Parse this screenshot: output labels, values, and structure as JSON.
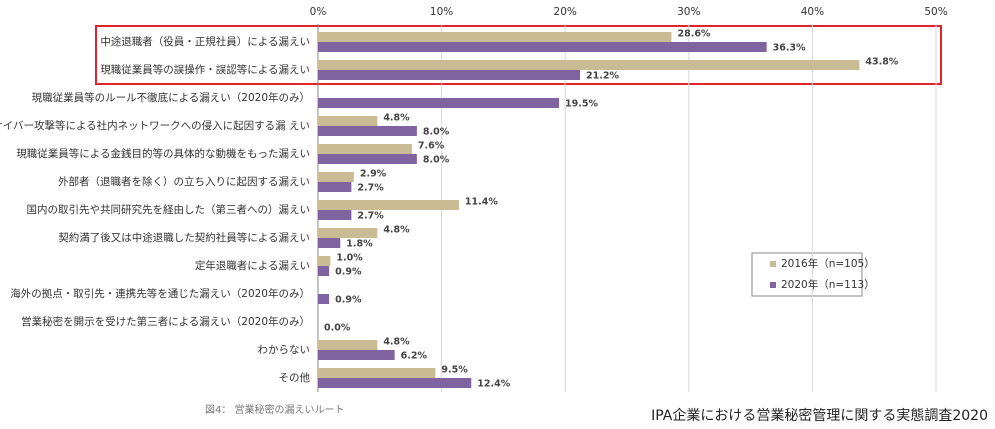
{
  "chart_data": {
    "type": "bar",
    "orientation": "horizontal",
    "categories": [
      "中途退職者（役員・正規社員）による漏えい",
      "現職従業員等の誤操作・誤認等による漏えい",
      "現職従業員等のルール不徹底による漏えい（2020年のみ）",
      "サイバー攻撃等による社内ネットワークへの侵入に起因する漏 えい",
      "現職従業員等による金銭目的等の具体的な動機をもった漏えい",
      "外部者（退職者を除く）の立ち入りに起因する漏えい",
      "国内の取引先や共同研究先を経由した（第三者への）漏えい",
      "契約満了後又は中途退職した契約社員等による漏えい",
      "定年退職者による漏えい",
      "海外の拠点・取引先・連携先等を通じた漏えい（2020年のみ）",
      "営業秘密を開示を受けた第三者による漏えい（2020年のみ）",
      "わからない",
      "その他"
    ],
    "series": [
      {
        "name": "2016年（n=105）",
        "color": "#c9bc94",
        "values": [
          28.6,
          43.8,
          null,
          4.8,
          7.6,
          2.9,
          11.4,
          4.8,
          1.0,
          null,
          null,
          4.8,
          9.5
        ],
        "value_labels": [
          "28.6%",
          "43.8%",
          null,
          "4.8%",
          "7.6%",
          "2.9%",
          "11.4%",
          "4.8%",
          "1.0%",
          null,
          null,
          "4.8%",
          "9.5%"
        ]
      },
      {
        "name": "2020年（n=113）",
        "color": "#8064a2",
        "values": [
          36.3,
          21.2,
          19.5,
          8.0,
          8.0,
          2.7,
          2.7,
          1.8,
          0.9,
          0.9,
          0.0,
          6.2,
          12.4
        ],
        "value_labels": [
          "36.3%",
          "21.2%",
          "19.5%",
          "8.0%",
          "8.0%",
          "2.7%",
          "2.7%",
          "1.8%",
          "0.9%",
          "0.9%",
          "0.0%",
          "6.2%",
          "12.4%"
        ]
      }
    ],
    "xlim": [
      0,
      50
    ],
    "xticks": [
      {
        "value": 0,
        "label": "0%"
      },
      {
        "value": 10,
        "label": "10%"
      },
      {
        "value": 20,
        "label": "20%"
      },
      {
        "value": 30,
        "label": "30%"
      },
      {
        "value": 40,
        "label": "40%"
      },
      {
        "value": 50,
        "label": "50%"
      }
    ],
    "grid": true,
    "legend": "right",
    "caption": "図4： 営業秘密の漏えいルート",
    "source": "IPA企業における営業秘密管理に関する実態調査2020"
  }
}
